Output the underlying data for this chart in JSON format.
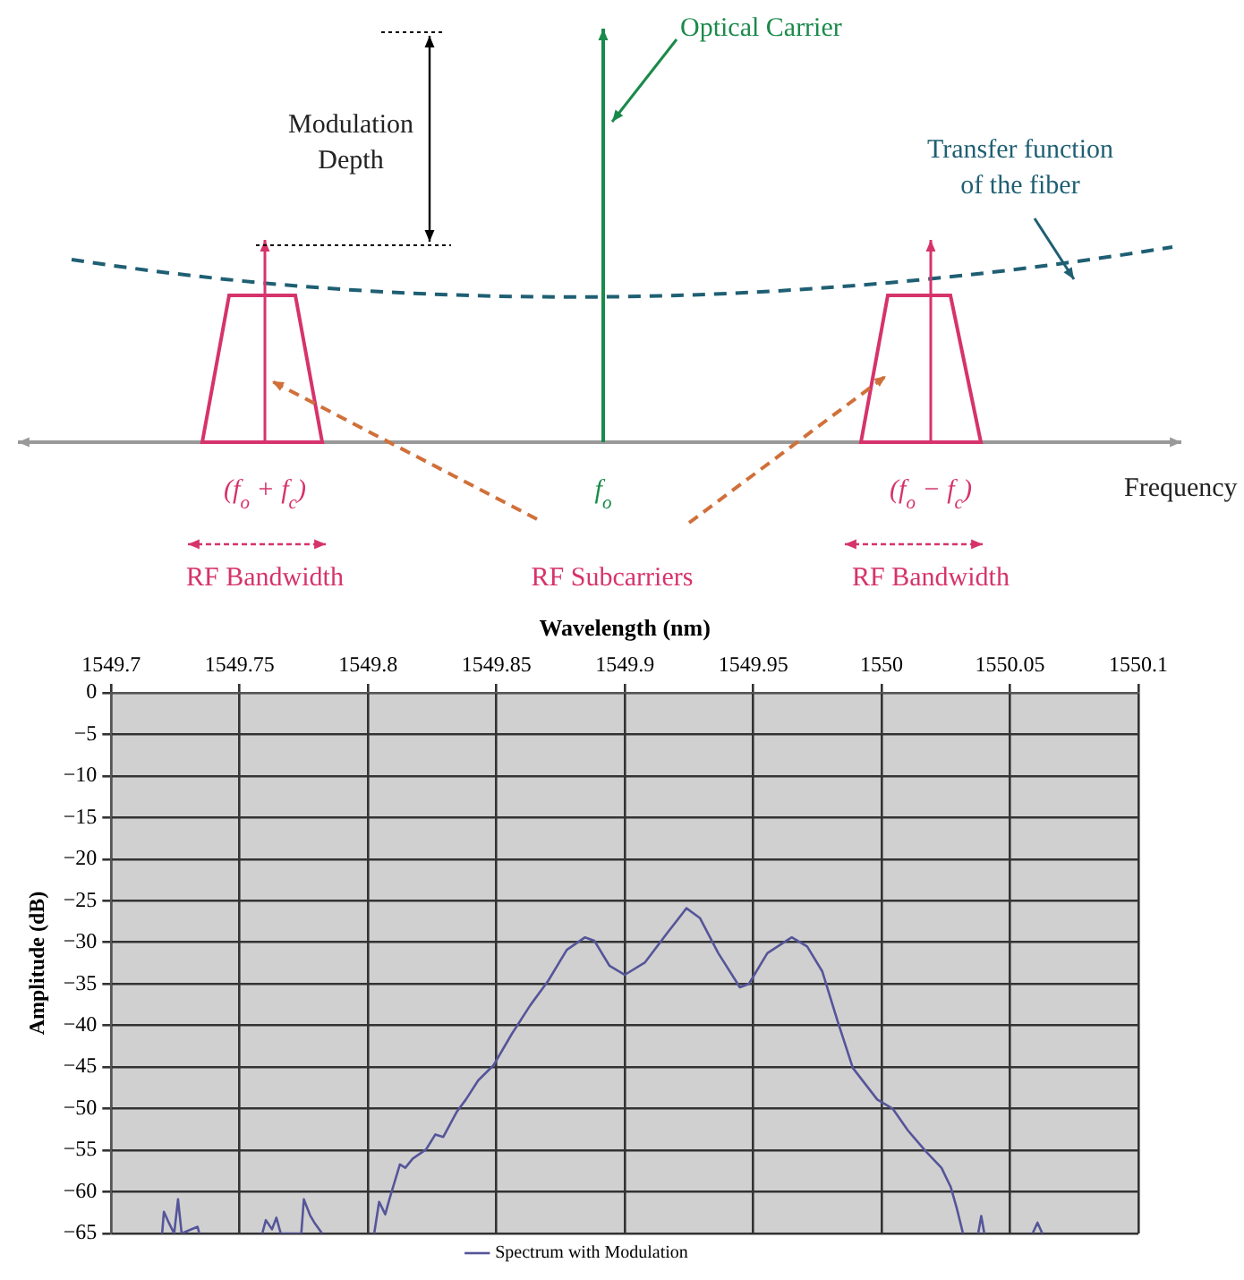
{
  "chart_data": [
    {
      "type": "other",
      "annotations": [
        "Optical Carrier",
        "Modulation\nDepth",
        "Transfer function\nof the fiber",
        "(f$_{o}$ + f$_{c}$)",
        "f$_{o}$",
        "(f$_{o}$ − f$_{c}$)",
        "Frequency",
        "RF Bandwidth",
        "RF Subcarriers",
        "RF Bandwidth"
      ]
    },
    {
      "type": "line",
      "xlabel": "Wavelength (nm)",
      "ylabel": "Amplitude (dB)",
      "xlim": [
        1549.7,
        1550.1
      ],
      "xticks": [
        1549.7,
        1549.75,
        1549.8,
        1549.85,
        1549.9,
        1549.95,
        1550,
        1550.05,
        1550.1
      ],
      "ylim": [
        -65,
        0
      ],
      "yticks": [
        0,
        -5,
        -10,
        -15,
        -20,
        -25,
        -30,
        -35,
        -40,
        -45,
        -50,
        -55,
        -60,
        -65
      ],
      "grid": true,
      "legend": "bottom",
      "marker": "none",
      "line_style": "solid",
      "series": [
        {
          "name": "Spectrum with Modulation",
          "color": "#55559a",
          "x": [
            1549.7198,
            1549.7205,
            1549.7224,
            1549.7245,
            1549.726,
            1549.7274,
            1549.7336,
            1549.7343,
            1549.735,
            1549.7588,
            1549.7602,
            1549.7626,
            1549.7643,
            1549.766,
            1549.774,
            1549.775,
            1549.7774,
            1549.7793,
            1549.7821,
            1549.79,
            1549.8024,
            1549.8043,
            1549.8067,
            1549.8083,
            1549.8124,
            1549.8145,
            1549.8174,
            1549.8226,
            1549.8262,
            1549.8293,
            1549.8345,
            1549.8381,
            1549.8429,
            1549.8488,
            1549.856,
            1549.8631,
            1549.8702,
            1549.8774,
            1549.8845,
            1549.8881,
            1549.894,
            1549.9,
            1549.9079,
            1549.9162,
            1549.924,
            1549.9293,
            1549.9364,
            1549.9448,
            1549.9483,
            1549.9555,
            1549.965,
            1549.971,
            1549.9769,
            1549.9829,
            1549.9888,
            1549.9983,
            1550.0043,
            1550.0102,
            1550.0174,
            1550.0233,
            1550.0269,
            1550.0293,
            1550.0317,
            1550.034,
            1550.0376,
            1550.0388,
            1550.04,
            1550.05,
            1550.0588,
            1550.0607,
            1550.0626
          ],
          "values": [
            -65,
            -62.4,
            -63.7,
            -65,
            -60.9,
            -65,
            -64.2,
            -65,
            null,
            -65,
            -63.4,
            -64.5,
            -63.1,
            -65,
            -65,
            -60.9,
            -62.8,
            -63.8,
            -65,
            null,
            -65,
            -61.2,
            -62.7,
            -60.9,
            -56.7,
            -57.1,
            -56,
            -54.9,
            -53.1,
            -53.4,
            -50.4,
            -48.9,
            -46.6,
            -44.8,
            -41,
            -37.6,
            -34.6,
            -30.9,
            -29.4,
            -29.8,
            -32.8,
            -33.9,
            -32.4,
            -29,
            -25.9,
            -27.1,
            -31.3,
            -35.4,
            -35,
            -31.3,
            -29.4,
            -30.5,
            -33.5,
            -39.5,
            -45.1,
            -48.9,
            -50,
            -52.6,
            -55.2,
            -57.1,
            -59.4,
            -62,
            -65,
            null,
            -65,
            -62.9,
            -65,
            null,
            -65,
            -63.7,
            -65
          ]
        }
      ]
    }
  ]
}
